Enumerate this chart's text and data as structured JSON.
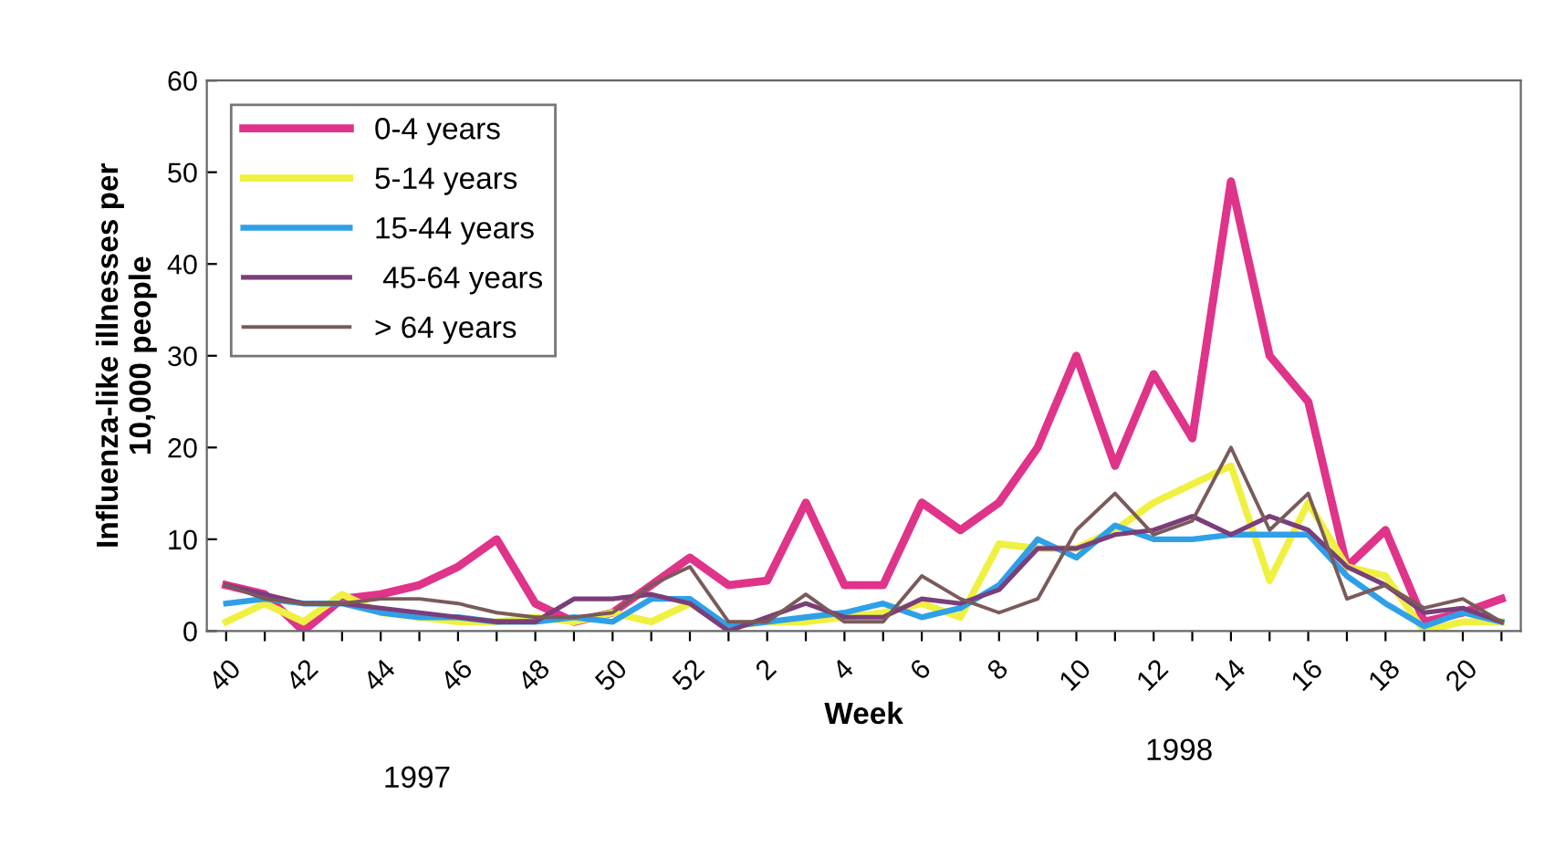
{
  "chart_data": {
    "type": "line",
    "ylabel": "Influenza-like illnesses per\n10,000 people",
    "xlabel": "Week",
    "annotations": [
      "1997",
      "1998"
    ],
    "categories": [
      "40",
      null,
      "42",
      null,
      "44",
      null,
      "46",
      null,
      "48",
      null,
      "50",
      null,
      "52",
      null,
      "2",
      null,
      "4",
      null,
      "6",
      null,
      "8",
      null,
      "10",
      null,
      "12",
      null,
      "14",
      null,
      "16",
      null,
      "18",
      null,
      "20",
      null
    ],
    "series": [
      {
        "name": "0-4 years",
        "color": "#e0338a",
        "values": [
          5,
          4,
          0,
          3.5,
          4,
          5,
          7,
          10,
          3,
          1,
          2,
          5,
          8,
          5,
          5.5,
          14,
          5,
          5,
          14,
          11,
          14,
          20,
          30,
          18,
          28,
          21,
          49,
          30,
          25,
          7,
          11,
          1,
          2,
          3.5
        ]
      },
      {
        "name": "5-14 years",
        "color": "#f0f040",
        "values": [
          1,
          3,
          1,
          4,
          2,
          1.5,
          1,
          1,
          1.5,
          1,
          2,
          1,
          3,
          0.5,
          1,
          1,
          1.5,
          2,
          3,
          1.5,
          9.5,
          9,
          9,
          11,
          14,
          16,
          18,
          5.5,
          14,
          7,
          6,
          0,
          1,
          1
        ]
      },
      {
        "name": "15-44 years",
        "color": "#2fa0e8",
        "values": [
          3,
          3.5,
          3,
          3,
          2,
          1.5,
          1.5,
          1,
          1,
          1.5,
          1,
          3.5,
          3.5,
          0.5,
          1,
          1.5,
          2,
          3,
          1.5,
          2.5,
          5,
          10,
          8,
          11.5,
          10,
          10,
          10.5,
          10.5,
          10.5,
          6,
          3,
          0.5,
          2,
          1
        ]
      },
      {
        "name": " 45-64 years",
        "color": "#7a3e7a",
        "values": [
          5,
          4,
          3,
          3,
          2.5,
          2,
          1.5,
          1,
          1,
          3.5,
          3.5,
          4,
          3,
          0,
          1.5,
          3,
          1.5,
          1.5,
          3.5,
          3,
          4.5,
          9,
          9,
          10.5,
          11,
          12.5,
          10.5,
          12.5,
          11,
          7,
          5,
          2,
          2.5,
          1
        ]
      },
      {
        "name": "> 64 years",
        "color": "#7a5a5a",
        "values": [
          5,
          3.5,
          3,
          3,
          3.5,
          3.5,
          3,
          2,
          1.5,
          1.5,
          2,
          5,
          7,
          1,
          1,
          4,
          1,
          1,
          6,
          3.5,
          2,
          3.5,
          11,
          15,
          10.5,
          12,
          20,
          11,
          15,
          3.5,
          5,
          2.5,
          3.5,
          1
        ]
      }
    ],
    "ylim": [
      0,
      60
    ],
    "yticks": [
      0,
      10,
      20,
      30,
      40,
      50,
      60
    ],
    "legend": "top left",
    "grid": false,
    "marker": "none",
    "line_style": "solid"
  }
}
